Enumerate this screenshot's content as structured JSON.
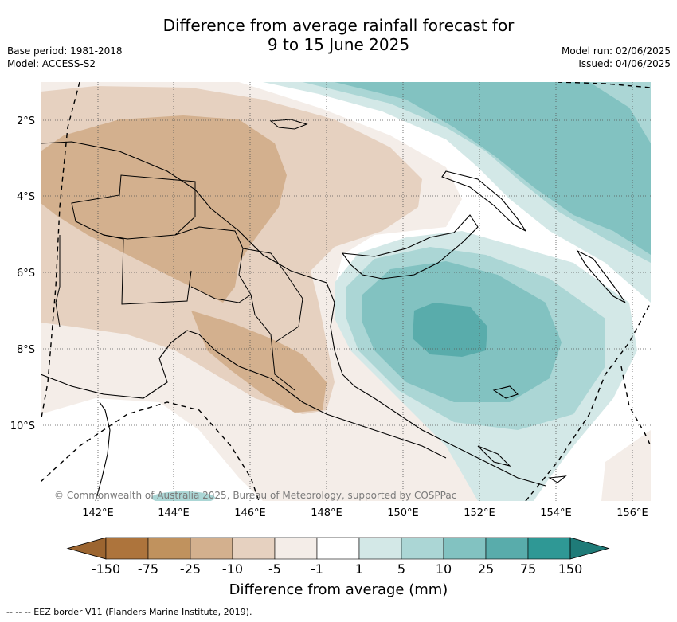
{
  "title": {
    "line1": "Difference from average rainfall forecast for",
    "line2": "9 to 15 June 2025"
  },
  "meta": {
    "base_period": "Base period: 1981-2018",
    "model": "Model: ACCESS-S2",
    "model_run": "Model run: 02/06/2025",
    "issued": "Issued: 04/06/2025"
  },
  "map": {
    "lat_labels": [
      "2°S",
      "4°S",
      "6°S",
      "8°S",
      "10°S"
    ],
    "lon_labels": [
      "142°E",
      "144°E",
      "146°E",
      "148°E",
      "150°E",
      "152°E",
      "154°E",
      "156°E"
    ],
    "copyright": "© Commonwealth of Australia 2025, Bureau of Meteorology, supported by COSPPac"
  },
  "colorbar": {
    "tick_labels": [
      "-150",
      "-75",
      "-25",
      "-10",
      "-5",
      "-1",
      "1",
      "5",
      "10",
      "25",
      "75",
      "150"
    ],
    "colors": [
      "#9c6530",
      "#ad743c",
      "#c0925e",
      "#d3b08e",
      "#e6d1c0",
      "#f4ede8",
      "#ffffff",
      "#d3e8e7",
      "#abd6d5",
      "#82c2c1",
      "#59acab",
      "#2f9895",
      "#1f7b78"
    ],
    "label": "Difference from average (mm)"
  },
  "footnote": "--  --  -- EEZ border V11 (Flanders Marine Institute, 2019)."
}
